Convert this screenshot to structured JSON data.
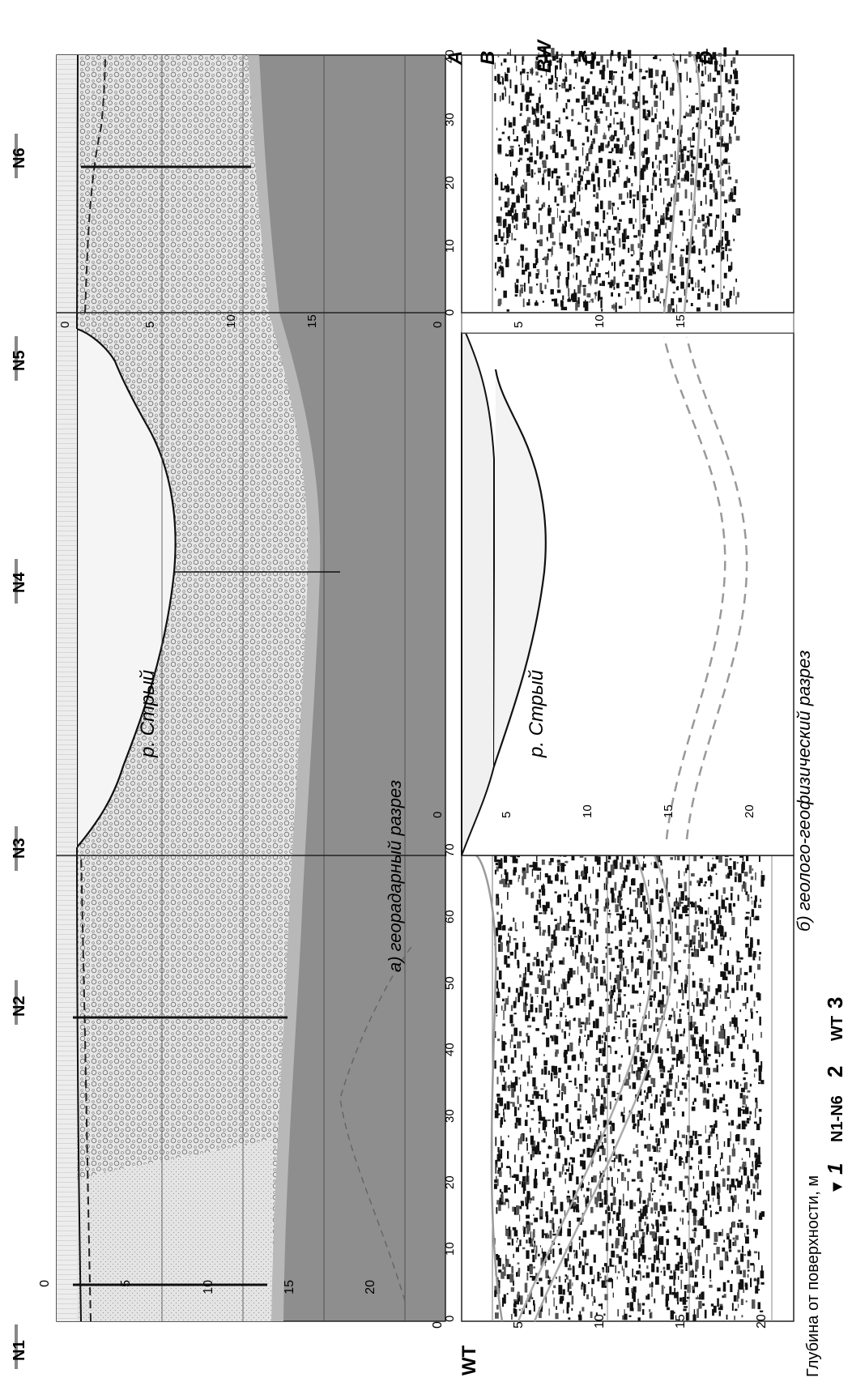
{
  "figure": {
    "panel_a_caption": "а) георадарный разрез",
    "panel_b_caption": "б) геолого-геофизический разрез",
    "river_label": "р. Стрый",
    "y_axis_title": "Глубина от поверхности, м",
    "wt_label": "WT",
    "layers": [
      "A",
      "B",
      "BW",
      "C",
      "D"
    ],
    "wells": [
      "N1",
      "N2",
      "N3",
      "N4",
      "N5",
      "N6"
    ],
    "legend": [
      {
        "symbol": "▼",
        "number": "1"
      },
      {
        "text": "N1-N6",
        "number": "2"
      },
      {
        "text": "WT",
        "number": "3"
      }
    ],
    "depth_ticks_left": [
      "0",
      "5",
      "10",
      "15",
      "20"
    ],
    "depth_ticks_mid": [
      "0",
      "5",
      "10",
      "15",
      "20"
    ],
    "depth_ticks_right": [
      "0",
      "5",
      "10",
      "15"
    ],
    "dist_ticks_left": [
      "0",
      "10",
      "20",
      "30",
      "40",
      "50",
      "60",
      "70"
    ],
    "dist_ticks_right": [
      "0",
      "10",
      "20",
      "30",
      "40"
    ]
  }
}
